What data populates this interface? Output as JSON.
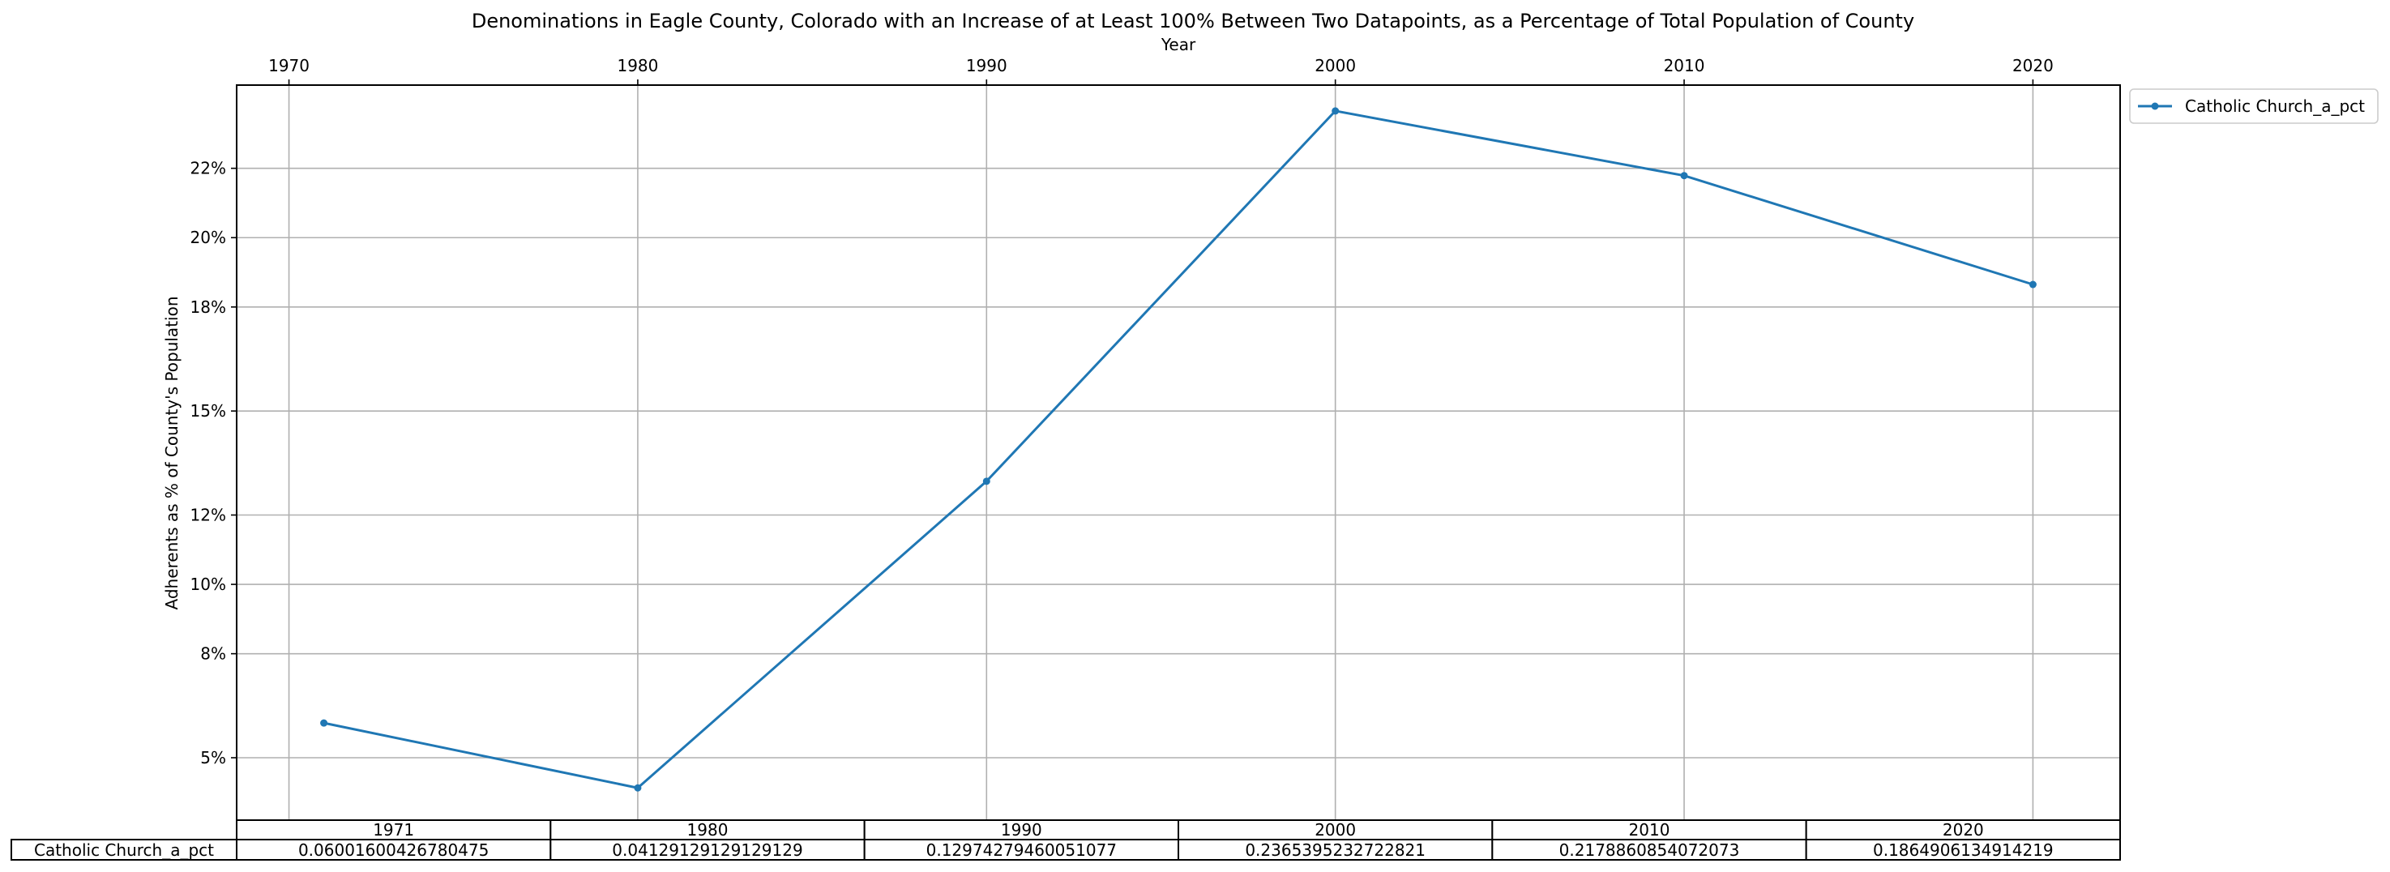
{
  "chart_data": {
    "type": "line",
    "title": "Denominations in Eagle County, Colorado with an Increase of at Least 100% Between Two Datapoints, as a Percentage of Total Population of County",
    "xlabel": "Year",
    "ylabel": "Adherents as % of County's Population",
    "x_position": "top",
    "x": [
      1971,
      1980,
      1990,
      2000,
      2010,
      2020
    ],
    "x_ticks": [
      "1970",
      "1980",
      "1990",
      "2000",
      "2010",
      "2020"
    ],
    "y_ticks": [
      "5%",
      "8%",
      "10%",
      "12%",
      "15%",
      "18%",
      "20%",
      "22%"
    ],
    "xlim": [
      1968.5,
      2022.5
    ],
    "ylim": [
      0.032,
      0.244
    ],
    "grid": true,
    "legend_position": "outside-top-right",
    "series": [
      {
        "name": "Catholic Church_a_pct",
        "color": "#1f77b4",
        "values": [
          0.06001600426780475,
          0.04129129129129129,
          0.12974279460051077,
          0.2365395232722821,
          0.2178860854072073,
          0.1864906134914219
        ]
      }
    ],
    "table": {
      "columns": [
        "1971",
        "1980",
        "1990",
        "2000",
        "2010",
        "2020"
      ],
      "row_label": "Catholic Church_a_pct",
      "cells": [
        "0.06001600426780475",
        "0.04129129129129129",
        "0.12974279460051077",
        "0.2365395232722821",
        "0.2178860854072073",
        "0.1864906134914219"
      ]
    }
  }
}
